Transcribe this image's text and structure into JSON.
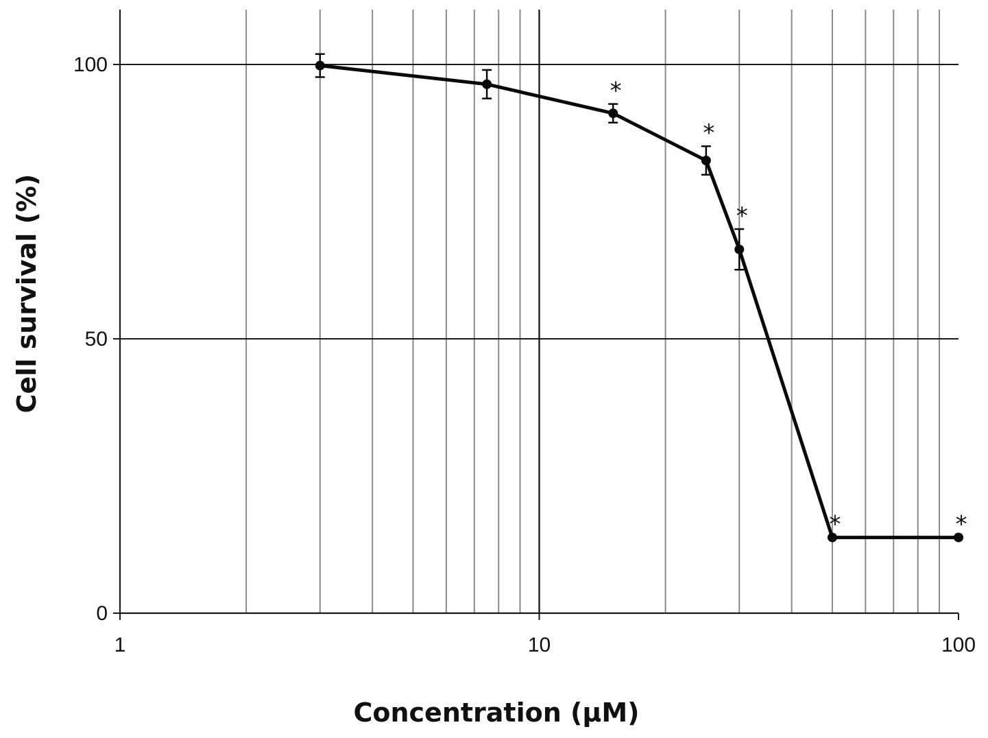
{
  "chart_data": {
    "type": "line",
    "title": "",
    "xlabel": "Concentration (μM)",
    "ylabel": "Cell survival (%)",
    "x_scale": "log",
    "xlim": [
      1,
      100
    ],
    "ylim": [
      0,
      100
    ],
    "x_ticks": [
      {
        "value": 1,
        "label": "1"
      },
      {
        "value": 10,
        "label": "10"
      },
      {
        "value": 100,
        "label": "100"
      }
    ],
    "y_ticks": [
      {
        "value": 0,
        "label": "0"
      },
      {
        "value": 50,
        "label": "50"
      },
      {
        "value": 100,
        "label": "100"
      }
    ],
    "grid": true,
    "legend": "none",
    "series": [
      {
        "points": [
          {
            "x": 3,
            "y": 99.8,
            "err": 2.1,
            "significant": false
          },
          {
            "x": 7.5,
            "y": 96.4,
            "err": 2.6,
            "significant": false
          },
          {
            "x": 15,
            "y": 91.1,
            "err": 1.7,
            "significant": true
          },
          {
            "x": 25,
            "y": 82.5,
            "err": 2.6,
            "significant": true
          },
          {
            "x": 30,
            "y": 66.3,
            "err": 3.7,
            "significant": true
          },
          {
            "x": 50,
            "y": 13.8,
            "err": 0,
            "significant": true
          },
          {
            "x": 100,
            "y": 13.8,
            "err": 0,
            "significant": true
          }
        ]
      }
    ],
    "significance_symbol": "*",
    "colors": {
      "line": "#0a0a0a",
      "grid_major": "#1a1a1a",
      "grid_minor": "#8a8a8a"
    }
  }
}
